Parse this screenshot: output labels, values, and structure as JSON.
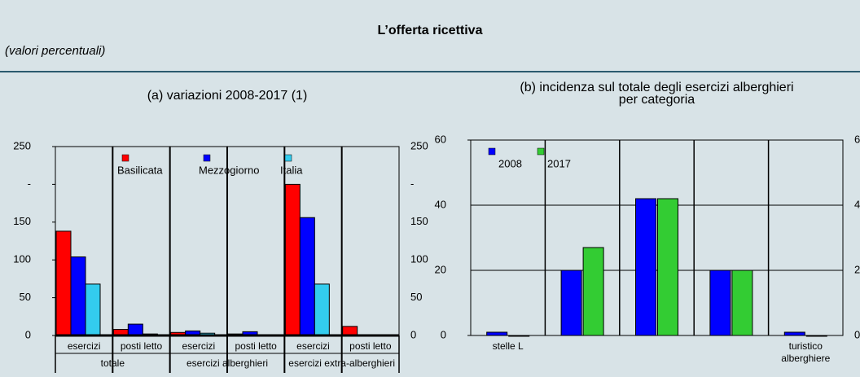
{
  "header": {
    "title": "L’offerta ricettiva",
    "subtitle": "(valori percentuali)"
  },
  "chart_data": [
    {
      "type": "bar",
      "title": "(a) variazioni 2008-2017 (1)",
      "categories": [
        "esercizi",
        "posti letto",
        "esercizi",
        "posti letto",
        "esercizi",
        "posti letto"
      ],
      "groups": [
        "totale",
        "esercizi alberghieri",
        "esercizi extra-alberghieri"
      ],
      "series": [
        {
          "name": "Basilicata",
          "color": "#ff0000",
          "values": [
            138,
            8,
            4,
            2,
            200,
            12
          ]
        },
        {
          "name": "Mezzogiorno",
          "color": "#0000ff",
          "values": [
            104,
            15,
            6,
            5,
            156,
            null
          ]
        },
        {
          "name": "Italia",
          "color": "#33ccee",
          "values": [
            68,
            2,
            3,
            1,
            68,
            null
          ]
        }
      ],
      "ylim": [
        0,
        250
      ],
      "yticks": [
        0,
        50,
        100,
        150,
        {
          "value": 200,
          "label": "-"
        },
        250
      ],
      "grid": "x",
      "legend": "top"
    },
    {
      "type": "bar",
      "title": "(b) incidenza sul totale degli esercizi alberghieri per categoria",
      "categories": [
        "stelle L",
        null,
        null,
        null,
        "turistico alberghiere"
      ],
      "series": [
        {
          "name": "2008",
          "color": "#0000ff",
          "values": [
            1,
            20,
            42,
            20,
            1
          ]
        },
        {
          "name": "2017",
          "color": "#33cc33",
          "values": [
            0,
            27,
            42,
            20,
            0
          ]
        }
      ],
      "ylim": [
        0,
        60
      ],
      "yticks": [
        0,
        20,
        40,
        60
      ],
      "grid": "y",
      "legend": "top-left"
    }
  ]
}
